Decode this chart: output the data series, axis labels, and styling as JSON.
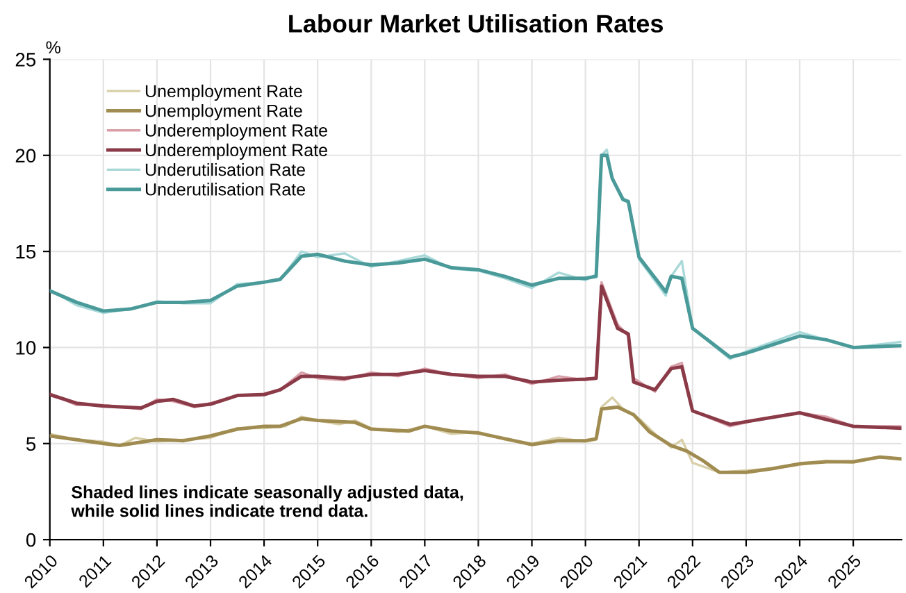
{
  "chart_data": {
    "type": "line",
    "title": "Labour Market Utilisation Rates",
    "ylabel": "%",
    "xlim": [
      2010,
      2025.9
    ],
    "ylim": [
      0,
      25
    ],
    "xticks": [
      2010,
      2011,
      2012,
      2013,
      2014,
      2015,
      2016,
      2017,
      2018,
      2019,
      2020,
      2021,
      2022,
      2023,
      2024,
      2025
    ],
    "yticks": [
      0,
      5,
      10,
      15,
      20,
      25
    ],
    "grid": true,
    "legend": "top left",
    "marker": "none",
    "line_style": "solid",
    "annotations": [
      "Shaded lines indicate seasonally adjusted data,\nwhile solid lines indicate trend data."
    ],
    "series": [
      {
        "name": "Unemployment Rate",
        "color": "#d8cfa8",
        "x": [
          2010,
          2010.5,
          2011,
          2011.3,
          2011.6,
          2012,
          2012.5,
          2013,
          2013.5,
          2014,
          2014.4,
          2014.7,
          2015,
          2015.4,
          2015.7,
          2016,
          2016.5,
          2017,
          2017.5,
          2018,
          2018.5,
          2019,
          2019.5,
          2020,
          2020.2,
          2020.3,
          2020.5,
          2020.7,
          2021,
          2021.3,
          2021.6,
          2021.8,
          2022,
          2022.5,
          2023,
          2023.5,
          2024,
          2024.5,
          2025,
          2025.5,
          2025.9
        ],
        "values": [
          5.5,
          5.2,
          5.1,
          4.9,
          5.3,
          5.1,
          5.2,
          5.3,
          5.8,
          5.8,
          5.9,
          6.4,
          6.2,
          6.0,
          6.2,
          5.8,
          5.6,
          5.9,
          5.5,
          5.6,
          5.2,
          5.0,
          5.3,
          5.1,
          5.2,
          6.9,
          7.4,
          6.8,
          6.3,
          5.5,
          4.8,
          5.2,
          4.0,
          3.5,
          3.6,
          3.7,
          3.9,
          4.1,
          4.0,
          4.3,
          4.2
        ]
      },
      {
        "name": "Unemployment Rate",
        "color": "#a08c50",
        "x": [
          2010,
          2010.5,
          2011,
          2011.3,
          2012,
          2012.5,
          2013,
          2013.5,
          2014,
          2014.3,
          2014.7,
          2015,
          2015.7,
          2016,
          2016.7,
          2017,
          2017.5,
          2018,
          2018.5,
          2019,
          2019.5,
          2020,
          2020.2,
          2020.3,
          2020.6,
          2020.9,
          2021.2,
          2021.6,
          2021.9,
          2022.2,
          2022.5,
          2023,
          2023.5,
          2024,
          2024.5,
          2025,
          2025.5,
          2025.9
        ],
        "values": [
          5.4,
          5.2,
          5.0,
          4.9,
          5.2,
          5.15,
          5.4,
          5.75,
          5.9,
          5.9,
          6.3,
          6.2,
          6.1,
          5.75,
          5.65,
          5.9,
          5.65,
          5.55,
          5.25,
          4.95,
          5.15,
          5.15,
          5.25,
          6.8,
          6.9,
          6.5,
          5.6,
          4.9,
          4.6,
          4.1,
          3.5,
          3.5,
          3.7,
          3.95,
          4.05,
          4.05,
          4.3,
          4.2
        ]
      },
      {
        "name": "Underemployment Rate",
        "color": "#d9a0aa",
        "x": [
          2010,
          2010.5,
          2011,
          2011.7,
          2012,
          2012.3,
          2012.7,
          2013,
          2013.5,
          2014,
          2014.3,
          2014.7,
          2015,
          2015.5,
          2016,
          2016.5,
          2017,
          2017.5,
          2018,
          2018.5,
          2019,
          2019.5,
          2020,
          2020.2,
          2020.3,
          2020.6,
          2020.8,
          2020.9,
          2021.3,
          2021.6,
          2021.8,
          2022,
          2022.7,
          2023.3,
          2024,
          2024.5,
          2025,
          2025.9
        ],
        "values": [
          7.6,
          7.0,
          7.0,
          6.8,
          7.3,
          7.2,
          6.9,
          7.1,
          7.5,
          7.6,
          7.8,
          8.7,
          8.4,
          8.3,
          8.7,
          8.5,
          8.9,
          8.6,
          8.4,
          8.6,
          8.1,
          8.5,
          8.3,
          8.4,
          13.4,
          11.2,
          10.6,
          8.4,
          7.7,
          9.0,
          9.2,
          6.7,
          5.9,
          6.3,
          6.6,
          6.4,
          5.9,
          5.9
        ]
      },
      {
        "name": "Underemployment Rate",
        "color": "#8b3a48",
        "x": [
          2010,
          2010.5,
          2011,
          2011.7,
          2012,
          2012.3,
          2012.7,
          2013,
          2013.5,
          2014,
          2014.3,
          2014.7,
          2015,
          2015.5,
          2016,
          2016.5,
          2017,
          2017.5,
          2018,
          2018.5,
          2019,
          2019.5,
          2020,
          2020.2,
          2020.3,
          2020.6,
          2020.8,
          2020.9,
          2021.3,
          2021.6,
          2021.8,
          2022,
          2022.7,
          2024,
          2025,
          2025.9
        ],
        "values": [
          7.55,
          7.1,
          6.95,
          6.85,
          7.2,
          7.3,
          6.95,
          7.05,
          7.5,
          7.55,
          7.8,
          8.5,
          8.5,
          8.4,
          8.6,
          8.6,
          8.8,
          8.6,
          8.5,
          8.5,
          8.2,
          8.3,
          8.35,
          8.4,
          13.2,
          11.0,
          10.7,
          8.2,
          7.8,
          8.9,
          9.0,
          6.7,
          6.0,
          6.6,
          5.9,
          5.8
        ]
      },
      {
        "name": "Underutilisation Rate",
        "color": "#a8d8d8",
        "x": [
          2010,
          2010.5,
          2011,
          2011.5,
          2012,
          2012.5,
          2013,
          2013.5,
          2014,
          2014.3,
          2014.7,
          2015,
          2015.5,
          2016,
          2016.5,
          2017,
          2017.5,
          2018,
          2018.5,
          2019,
          2019.5,
          2020,
          2020.2,
          2020.3,
          2020.4,
          2020.5,
          2020.7,
          2020.8,
          2021,
          2021.5,
          2021.6,
          2021.8,
          2022,
          2022.7,
          2023,
          2024,
          2024.5,
          2025,
          2025.9
        ],
        "values": [
          13.0,
          12.2,
          11.8,
          12.0,
          12.4,
          12.3,
          12.3,
          13.3,
          13.4,
          13.5,
          15.0,
          14.7,
          14.9,
          14.2,
          14.5,
          14.8,
          14.1,
          14.0,
          13.6,
          13.1,
          13.9,
          13.5,
          13.8,
          20.0,
          20.3,
          18.8,
          17.8,
          17.5,
          14.6,
          12.7,
          13.7,
          14.5,
          11.0,
          9.4,
          9.8,
          10.8,
          10.4,
          10.0,
          10.3
        ]
      },
      {
        "name": "Underutilisation Rate",
        "color": "#4a9a9a",
        "x": [
          2010,
          2010.5,
          2011,
          2011.5,
          2012,
          2012.5,
          2013,
          2013.5,
          2014,
          2014.3,
          2014.7,
          2015,
          2015.5,
          2016,
          2016.5,
          2017,
          2017.5,
          2018,
          2018.5,
          2019,
          2019.5,
          2020,
          2020.2,
          2020.3,
          2020.4,
          2020.5,
          2020.7,
          2020.8,
          2021,
          2021.5,
          2021.6,
          2021.8,
          2022,
          2022.7,
          2023,
          2024,
          2024.5,
          2025,
          2025.9
        ],
        "values": [
          12.95,
          12.35,
          11.9,
          12.0,
          12.35,
          12.35,
          12.45,
          13.2,
          13.4,
          13.55,
          14.75,
          14.85,
          14.5,
          14.3,
          14.4,
          14.6,
          14.15,
          14.05,
          13.7,
          13.25,
          13.6,
          13.6,
          13.7,
          20.0,
          20.0,
          18.8,
          17.7,
          17.6,
          14.7,
          12.9,
          13.7,
          13.6,
          11.0,
          9.5,
          9.7,
          10.6,
          10.4,
          10.0,
          10.1
        ]
      }
    ]
  }
}
